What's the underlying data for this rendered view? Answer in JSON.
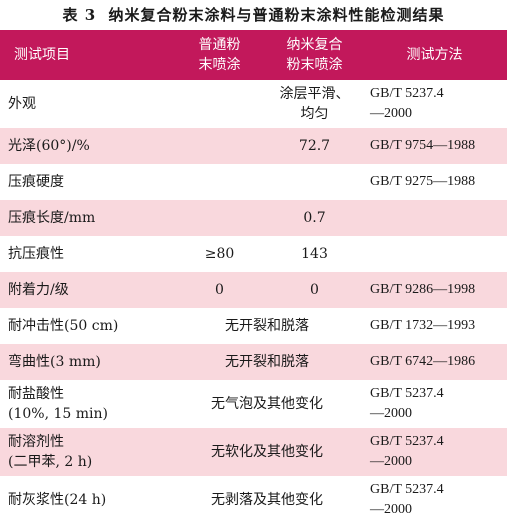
{
  "caption": {
    "label": "表 3",
    "title": "纳米复合粉末涂料与普通粉末涂料性能检测结果"
  },
  "headers": {
    "item": "测试项目",
    "normal_l1": "普通粉",
    "normal_l2": "末喷涂",
    "nano_l1": "纳米复合",
    "nano_l2": "粉末喷涂",
    "method": "测试方法"
  },
  "rows": [
    {
      "item": "外观",
      "item2": "",
      "normal": "",
      "nano": "涂层平滑、",
      "nano2": "均匀",
      "merged": "",
      "method": "GB/T 5237.4",
      "method2": "—2000"
    },
    {
      "item": "光泽(60°)/%",
      "item2": "",
      "normal": "",
      "nano": "72.7",
      "nano2": "",
      "merged": "",
      "method": "GB/T 9754—1988",
      "method2": ""
    },
    {
      "item": "压痕硬度",
      "item2": "",
      "normal": "",
      "nano": "",
      "nano2": "",
      "merged": "",
      "method": "GB/T 9275—1988",
      "method2": ""
    },
    {
      "item": "压痕长度/mm",
      "item2": "",
      "normal": "",
      "nano": "0.7",
      "nano2": "",
      "merged": "",
      "method": "",
      "method2": ""
    },
    {
      "item": "抗压痕性",
      "item2": "",
      "normal": "≥80",
      "nano": "143",
      "nano2": "",
      "merged": "",
      "method": "",
      "method2": ""
    },
    {
      "item": "附着力/级",
      "item2": "",
      "normal": "0",
      "nano": "0",
      "nano2": "",
      "merged": "",
      "method": "GB/T 9286—1998",
      "method2": ""
    },
    {
      "item": "耐冲击性(50 cm)",
      "item2": "",
      "normal": "",
      "nano": "",
      "nano2": "",
      "merged": "无开裂和脱落",
      "method": "GB/T 1732—1993",
      "method2": ""
    },
    {
      "item": "弯曲性(3 mm)",
      "item2": "",
      "normal": "",
      "nano": "",
      "nano2": "",
      "merged": "无开裂和脱落",
      "method": "GB/T 6742—1986",
      "method2": ""
    },
    {
      "item": "耐盐酸性",
      "item2": "(10%, 15 min)",
      "normal": "",
      "nano": "",
      "nano2": "",
      "merged": "无气泡及其他变化",
      "method": "GB/T 5237.4",
      "method2": "—2000"
    },
    {
      "item": "耐溶剂性",
      "item2": "(二甲苯, 2 h)",
      "normal": "",
      "nano": "",
      "nano2": "",
      "merged": "无软化及其他变化",
      "method": "GB/T 5237.4",
      "method2": "—2000"
    },
    {
      "item": "耐灰浆性(24 h)",
      "item2": "",
      "normal": "",
      "nano": "",
      "nano2": "",
      "merged": "无剥落及其他变化",
      "method": "GB/T 5237.4",
      "method2": "—2000"
    }
  ]
}
